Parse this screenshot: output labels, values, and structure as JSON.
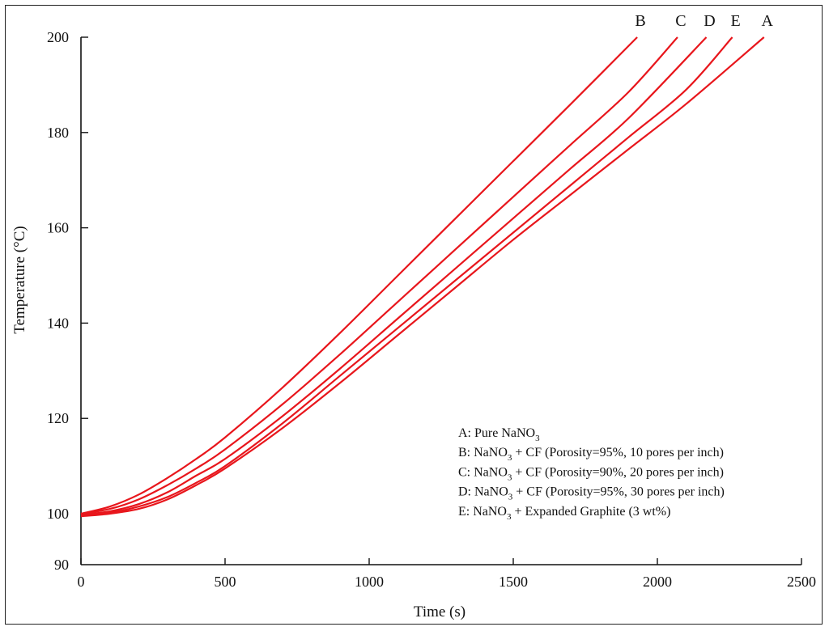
{
  "chart_data": {
    "type": "line",
    "title": "",
    "xlabel": "Time (s)",
    "ylabel": "Temperature (°C)",
    "xlim": [
      0,
      2500
    ],
    "ylim": [
      90,
      200
    ],
    "xticks": [
      0,
      500,
      1000,
      1500,
      2000,
      2500
    ],
    "yticks": [
      90,
      100,
      120,
      140,
      160,
      180,
      200
    ],
    "grid": false,
    "legend_position": "bottom-right",
    "series": [
      {
        "name": "A",
        "legend": {
          "prefix": "A: Pure NaNO",
          "sub": "3",
          "suffix": ""
        },
        "x": [
          0,
          100,
          200,
          300,
          400,
          500,
          700,
          900,
          1100,
          1300,
          1500,
          1700,
          1900,
          2100,
          2370
        ],
        "y": [
          99.5,
          100.0,
          101.0,
          103.0,
          106.0,
          109.5,
          118.0,
          127.5,
          137.5,
          147.5,
          157.5,
          167.0,
          176.5,
          186.0,
          200.0
        ]
      },
      {
        "name": "B",
        "legend": {
          "prefix": "B: NaNO",
          "sub": "3",
          "suffix": " + CF (Porosity=95%, 10 pores per inch)"
        },
        "x": [
          0,
          100,
          200,
          300,
          400,
          500,
          700,
          900,
          1100,
          1300,
          1500,
          1700,
          1930
        ],
        "y": [
          100.0,
          101.5,
          104.0,
          107.5,
          111.5,
          116.0,
          126.5,
          138.0,
          150.0,
          162.0,
          174.0,
          186.0,
          200.0
        ]
      },
      {
        "name": "C",
        "legend": {
          "prefix": "C: NaNO",
          "sub": "3",
          "suffix": " + CF (Porosity=90%, 20 pores per inch)"
        },
        "x": [
          0,
          100,
          200,
          300,
          400,
          500,
          700,
          900,
          1100,
          1300,
          1500,
          1700,
          1900,
          2070
        ],
        "y": [
          100.0,
          101.0,
          103.0,
          106.0,
          109.5,
          113.5,
          123.0,
          133.5,
          144.5,
          155.5,
          166.5,
          177.5,
          188.5,
          200.0
        ]
      },
      {
        "name": "D",
        "legend": {
          "prefix": "D: NaNO",
          "sub": "3",
          "suffix": " + CF (Porosity=95%, 30 pores per inch)"
        },
        "x": [
          0,
          100,
          200,
          300,
          400,
          500,
          700,
          900,
          1100,
          1300,
          1500,
          1700,
          1900,
          2170
        ],
        "y": [
          99.8,
          100.5,
          102.0,
          104.5,
          108.0,
          111.5,
          120.5,
          130.5,
          141.0,
          151.5,
          162.0,
          172.5,
          183.0,
          200.0
        ]
      },
      {
        "name": "E",
        "legend": {
          "prefix": "E: NaNO",
          "sub": "3",
          "suffix": " + Expanded Graphite (3 wt%)"
        },
        "x": [
          0,
          100,
          200,
          300,
          400,
          500,
          700,
          900,
          1100,
          1300,
          1500,
          1700,
          1900,
          2100,
          2260
        ],
        "y": [
          99.6,
          100.2,
          101.5,
          103.5,
          106.5,
          110.0,
          119.0,
          129.0,
          139.0,
          149.0,
          159.0,
          169.0,
          179.0,
          189.0,
          200.0
        ]
      }
    ],
    "legend_order": [
      "A",
      "B",
      "C",
      "D",
      "E"
    ]
  }
}
